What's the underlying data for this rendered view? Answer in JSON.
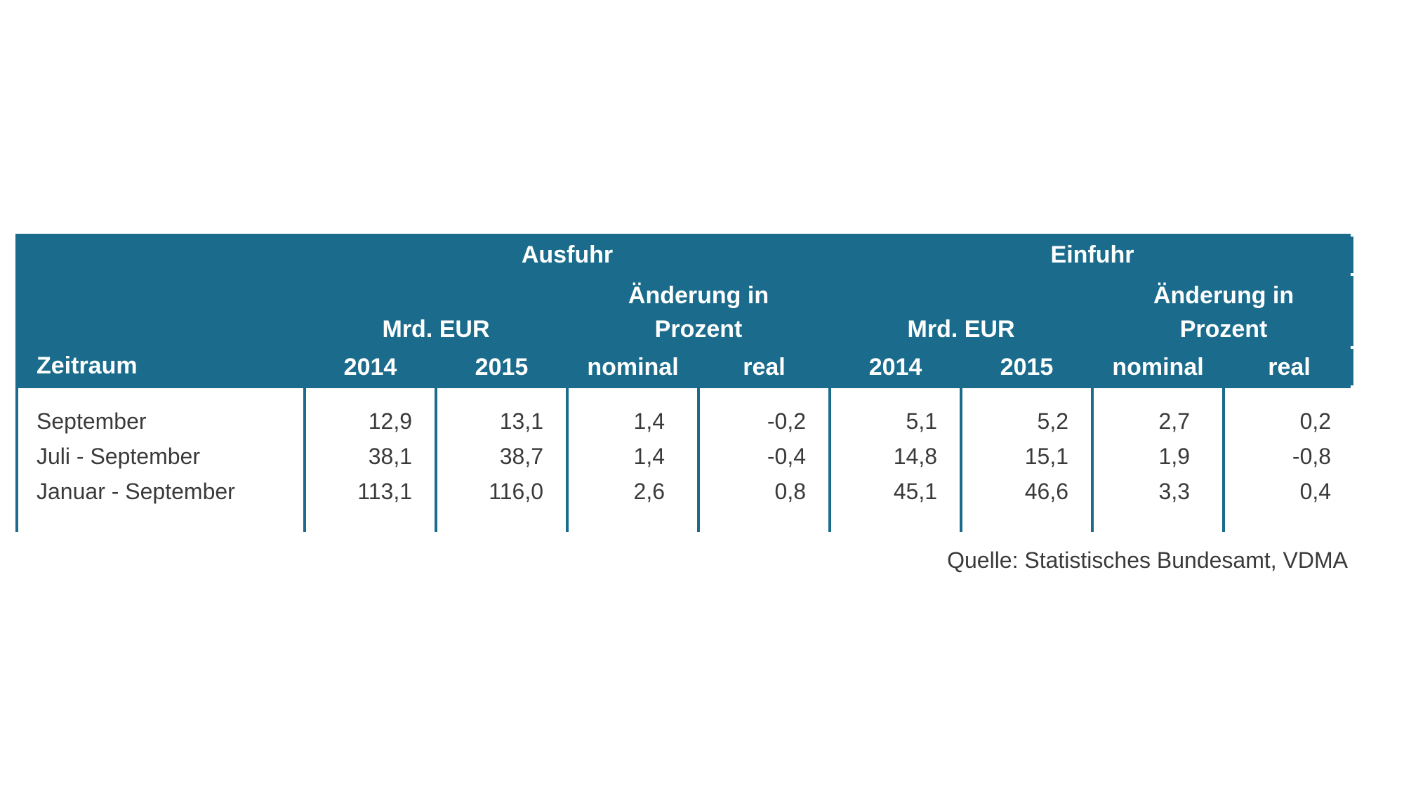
{
  "table": {
    "header": {
      "zeitraum": "Zeitraum",
      "ausfuhr": "Ausfuhr",
      "einfuhr": "Einfuhr",
      "mrd_eur": "Mrd. EUR",
      "aenderung_line1": "Änderung in",
      "aenderung_line2": "Prozent",
      "y2014": "2014",
      "y2015": "2015",
      "nominal": "nominal",
      "real": "real"
    },
    "rows": [
      {
        "label": "September",
        "ausfuhr_2014": "12,9",
        "ausfuhr_2015": "13,1",
        "ausfuhr_nominal": "1,4",
        "ausfuhr_real": "-0,2",
        "einfuhr_2014": "5,1",
        "einfuhr_2015": "5,2",
        "einfuhr_nominal": "2,7",
        "einfuhr_real": "0,2"
      },
      {
        "label": "Juli - September",
        "ausfuhr_2014": "38,1",
        "ausfuhr_2015": "38,7",
        "ausfuhr_nominal": "1,4",
        "ausfuhr_real": "-0,4",
        "einfuhr_2014": "14,8",
        "einfuhr_2015": "15,1",
        "einfuhr_nominal": "1,9",
        "einfuhr_real": "-0,8"
      },
      {
        "label": "Januar - September",
        "ausfuhr_2014": "113,1",
        "ausfuhr_2015": "116,0",
        "ausfuhr_nominal": "2,6",
        "ausfuhr_real": "0,8",
        "einfuhr_2014": "45,1",
        "einfuhr_2015": "46,6",
        "einfuhr_nominal": "3,3",
        "einfuhr_real": "0,4"
      }
    ]
  },
  "source": "Quelle: Statistisches Bundesamt, VDMA",
  "colors": {
    "header_background": "#1b6c8c",
    "header_text": "#ffffff",
    "body_text": "#3a3a3a"
  }
}
